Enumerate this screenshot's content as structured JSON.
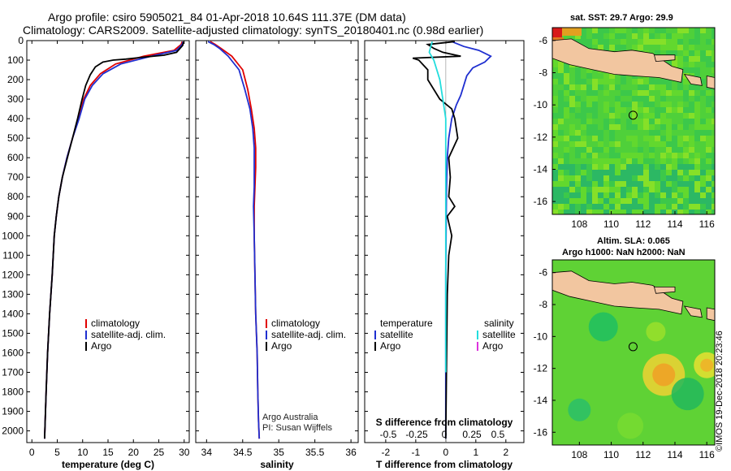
{
  "header": {
    "line1": "Argo profile: csiro 5905021_84 01-Apr-2018 10.64S 111.37E (DM data)",
    "line2": "Climatology: CARS2009. Satellite-adjusted climatology: synTS_20180401.nc (0.98d earlier)"
  },
  "colors": {
    "climatology": "#e00000",
    "satellite": "#1f2fd0",
    "argo": "#000000",
    "satellite_salinity": "#22dddd",
    "argo_salinity": "#dd33dd",
    "land": "#f2c6a0"
  },
  "chart_data": [
    {
      "type": "line",
      "xlabel": "temperature (deg C)",
      "ylabel": "",
      "xlim": [
        -1,
        31
      ],
      "ylim": [
        2060,
        0
      ],
      "xticks": [
        0,
        5,
        10,
        15,
        20,
        25,
        30
      ],
      "yticks": [
        0,
        100,
        200,
        300,
        400,
        500,
        600,
        700,
        800,
        900,
        1000,
        1100,
        1200,
        1300,
        1400,
        1500,
        1600,
        1700,
        1800,
        1900,
        2000
      ],
      "legend": [
        "climatology",
        "satellite-adj. clim.",
        "Argo"
      ],
      "series": [
        {
          "name": "climatology",
          "color": "#e00000",
          "x": [
            29.6,
            29.4,
            28.0,
            22.0,
            16.5,
            13.5,
            11.5,
            10.2,
            9.2,
            8.0,
            6.9,
            6.0,
            5.3,
            4.8,
            4.4,
            4.0,
            3.5,
            3.1,
            2.8,
            2.5
          ],
          "y": [
            5,
            20,
            50,
            80,
            120,
            170,
            230,
            300,
            400,
            500,
            600,
            700,
            800,
            900,
            1000,
            1200,
            1400,
            1600,
            1800,
            2040
          ]
        },
        {
          "name": "satellite-adj. clim.",
          "color": "#1f2fd0",
          "x": [
            29.8,
            29.6,
            28.5,
            23.5,
            17.5,
            14.0,
            11.9,
            10.4,
            9.3,
            8.0,
            6.9,
            6.0,
            5.3,
            4.8,
            4.4,
            4.0,
            3.5,
            3.1,
            2.8,
            2.5
          ],
          "y": [
            5,
            20,
            50,
            80,
            120,
            170,
            230,
            300,
            400,
            500,
            600,
            700,
            800,
            900,
            1000,
            1200,
            1400,
            1600,
            1800,
            2040
          ]
        },
        {
          "name": "Argo",
          "color": "#000000",
          "x": [
            29.9,
            29.7,
            28.5,
            26.0,
            22.0,
            18.5,
            16.0,
            14.0,
            12.5,
            11.5,
            10.6,
            9.9,
            9.0,
            8.0,
            7.0,
            6.0,
            5.3,
            4.8,
            4.4,
            4.0,
            3.5,
            3.1,
            2.8,
            2.5
          ],
          "y": [
            5,
            25,
            60,
            75,
            85,
            95,
            100,
            110,
            135,
            175,
            230,
            300,
            400,
            500,
            600,
            700,
            800,
            900,
            1000,
            1200,
            1400,
            1600,
            1800,
            2040
          ]
        }
      ]
    },
    {
      "type": "line",
      "xlabel": "salinity",
      "ylabel": "",
      "xlim": [
        33.85,
        36.1
      ],
      "ylim": [
        2060,
        0
      ],
      "xticks": [
        34,
        34.5,
        35,
        35.5,
        36
      ],
      "legend": [
        "climatology",
        "satellite-adj. clim.",
        "Argo"
      ],
      "annotations": [
        "Argo Australia",
        "PI: Susan Wijffels"
      ],
      "series": [
        {
          "name": "climatology",
          "color": "#e00000",
          "x": [
            34.05,
            34.12,
            34.2,
            34.35,
            34.5,
            34.57,
            34.62,
            34.66,
            34.68,
            34.68,
            34.67,
            34.66,
            34.66,
            34.67,
            34.68,
            34.7,
            34.71,
            34.72,
            34.73
          ],
          "y": [
            5,
            20,
            40,
            80,
            150,
            250,
            350,
            450,
            550,
            650,
            750,
            850,
            1000,
            1200,
            1400,
            1600,
            1800,
            1950,
            2040
          ]
        },
        {
          "name": "satellite-adj. clim.",
          "color": "#1f2fd0",
          "x": [
            34.02,
            34.1,
            34.18,
            34.3,
            34.45,
            34.53,
            34.6,
            34.64,
            34.66,
            34.66,
            34.66,
            34.65,
            34.66,
            34.67,
            34.68,
            34.7,
            34.71,
            34.72,
            34.73
          ],
          "y": [
            5,
            20,
            40,
            80,
            150,
            250,
            350,
            450,
            550,
            650,
            750,
            850,
            1000,
            1200,
            1400,
            1600,
            1800,
            1950,
            2040
          ]
        }
      ]
    },
    {
      "type": "line",
      "xlabel": "T difference from climatology",
      "ylabel": "",
      "xlim": [
        -2.7,
        2.6
      ],
      "ylim": [
        2060,
        0
      ],
      "xticks": [
        -2,
        -1,
        0,
        1,
        2
      ],
      "secondary_xlabel": "S difference from climatology",
      "secondary_xticks": [
        "-0.5",
        "-0.25",
        "0",
        "0.25",
        "0.5"
      ],
      "legend_left_title": "temperature",
      "legend_right_title": "salinity",
      "legend": [
        "satellite",
        "Argo",
        "satellite",
        "Argo"
      ],
      "series": [
        {
          "name": "temperature satellite",
          "color": "#1f2fd0",
          "x": [
            0.2,
            0.6,
            1.1,
            1.5,
            1.3,
            0.9,
            0.7,
            0.6,
            0.5,
            0.35,
            0.2,
            0.1,
            0.05,
            0.03,
            0.02,
            0.01,
            0.0,
            0.0,
            0.0,
            0.0
          ],
          "y": [
            5,
            30,
            50,
            80,
            110,
            140,
            180,
            230,
            280,
            330,
            400,
            500,
            600,
            700,
            800,
            1000,
            1200,
            1500,
            1800,
            2040
          ]
        },
        {
          "name": "temperature Argo",
          "color": "#000000",
          "x": [
            0.3,
            -0.6,
            -0.4,
            -0.1,
            0.5,
            -1.1,
            -0.9,
            -0.6,
            -0.6,
            -0.4,
            -0.2,
            0.2,
            0.3,
            0.4,
            0.1,
            0.15,
            0.1,
            0.3,
            0.05,
            0.2,
            0.1,
            0.05,
            0.0
          ],
          "y": [
            5,
            20,
            40,
            60,
            80,
            90,
            100,
            150,
            200,
            250,
            300,
            350,
            400,
            500,
            600,
            700,
            800,
            850,
            900,
            1000,
            1100,
            1300,
            2040
          ]
        },
        {
          "name": "salinity satellite",
          "color": "#22dddd",
          "x": [
            -0.45,
            -0.5,
            -0.55,
            -0.4,
            -0.3,
            -0.2,
            -0.1,
            0.0,
            0.0,
            0.0,
            0.0,
            0.0,
            0.0
          ],
          "y": [
            5,
            30,
            60,
            100,
            150,
            200,
            300,
            400,
            600,
            800,
            1000,
            1400,
            1700
          ]
        }
      ]
    }
  ],
  "maps": [
    {
      "title": "sat. SST: 29.7 Argo: 29.9",
      "subtitle": "",
      "xticks": [
        "108",
        "110",
        "112",
        "114",
        "116"
      ],
      "yticks": [
        "-6",
        "-8",
        "-10",
        "-12",
        "-14",
        "-16"
      ],
      "lon_range": [
        106.3,
        116.5
      ],
      "lat_range": [
        -16.8,
        -5.2
      ],
      "argo_position": [
        111.37,
        -10.64
      ]
    },
    {
      "title": "Altim. SLA: 0.065",
      "subtitle": "Argo h1000: NaN h2000: NaN",
      "xticks": [
        "108",
        "110",
        "112",
        "114",
        "116"
      ],
      "yticks": [
        "-6",
        "-8",
        "-10",
        "-12",
        "-14",
        "-16"
      ],
      "lon_range": [
        106.3,
        116.5
      ],
      "lat_range": [
        -16.8,
        -5.2
      ],
      "argo_position": [
        111.37,
        -10.64
      ]
    }
  ],
  "footer": {
    "stamp": "©IMOS 19-Dec-2018 20:23:46"
  }
}
